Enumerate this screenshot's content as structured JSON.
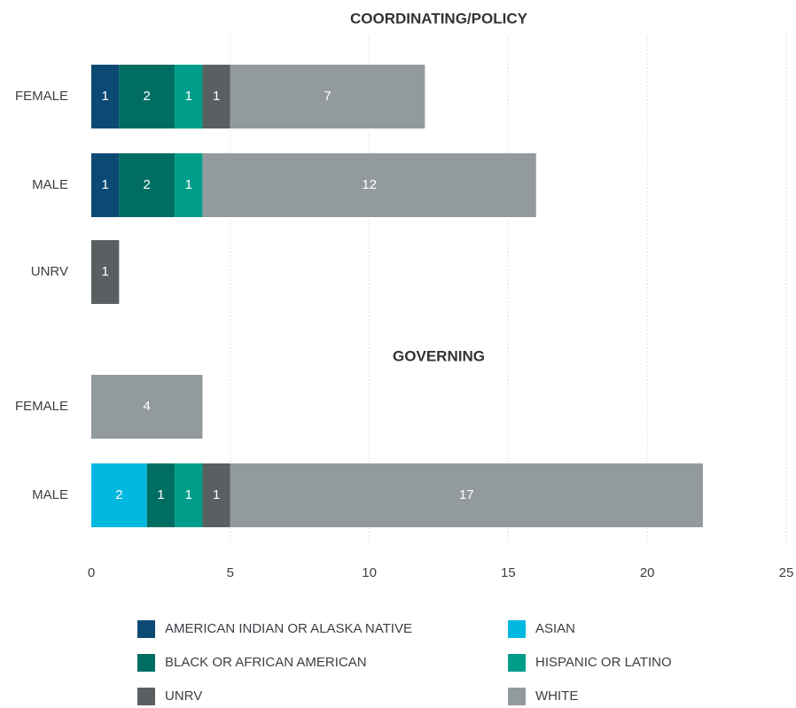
{
  "chart_data": {
    "type": "stacked_bar_horizontal",
    "groups": [
      {
        "title": "COORDINATING/POLICY",
        "categories": [
          "FEMALE",
          "MALE",
          "UNRV"
        ]
      },
      {
        "title": "GOVERNING",
        "categories": [
          "FEMALE",
          "MALE"
        ]
      }
    ],
    "series": [
      {
        "name": "AMERICAN INDIAN OR ALASKA NATIVE",
        "color": "#0d4a73",
        "values": [
          1,
          1,
          null,
          null,
          null
        ]
      },
      {
        "name": "ASIAN",
        "color": "#00b8e0",
        "values": [
          null,
          null,
          null,
          null,
          2
        ]
      },
      {
        "name": "BLACK OR AFRICAN AMERICAN",
        "color": "#006d63",
        "values": [
          2,
          2,
          null,
          null,
          1
        ]
      },
      {
        "name": "HISPANIC OR LATINO",
        "color": "#009e8a",
        "values": [
          1,
          1,
          null,
          null,
          1
        ]
      },
      {
        "name": "UNRV",
        "color": "#5a5f61",
        "values": [
          1,
          null,
          1,
          null,
          1
        ]
      },
      {
        "name": "WHITE",
        "color": "#939a9e",
        "values": [
          7,
          12,
          null,
          4,
          17
        ]
      }
    ],
    "xlim": [
      0,
      25
    ],
    "xticks": [
      0,
      5,
      10,
      15,
      20,
      25
    ],
    "grid": true
  }
}
